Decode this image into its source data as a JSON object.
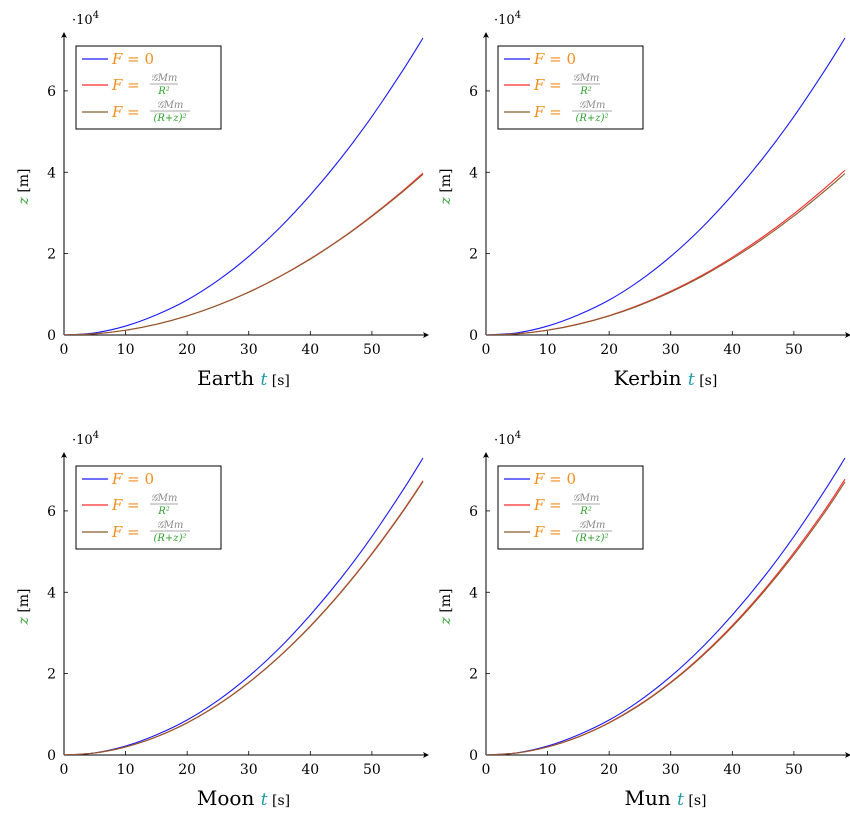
{
  "colors": {
    "orange": "#f28e1c",
    "green": "#2ca02c",
    "teal": "#1f9aa8",
    "gray": "#8a8a8a",
    "blue": "#1a1aff",
    "red": "#ff2a2a",
    "brown": "#8b5a2b",
    "axis": "#000000"
  },
  "shared": {
    "multiplier_base": "·10",
    "multiplier_exp": "4",
    "ylabel_var": "z",
    "ylabel_unit": "[m]",
    "xlabel_var": "t",
    "xlabel_unit": "[s]",
    "legend": [
      {
        "lhs": "F = ",
        "rhs": "0",
        "kind": "plain"
      },
      {
        "lhs": "F = ",
        "num": "𝒢Mm",
        "den": "R²",
        "kind": "frac"
      },
      {
        "lhs": "F = ",
        "num": "𝒢Mm",
        "den": "(R+z)²",
        "kind": "frac"
      }
    ]
  },
  "chart_data": [
    {
      "type": "line",
      "xlabel_prefix": "Earth",
      "xlim": [
        0,
        58.3
      ],
      "ylim": [
        0,
        73000
      ],
      "xticks": [
        0,
        10,
        20,
        30,
        40,
        50
      ],
      "yticks": [
        0,
        20000,
        40000,
        60000
      ],
      "ytick_labels": [
        "0",
        "2",
        "4",
        "6"
      ],
      "series": [
        {
          "name": "F = 0",
          "color": "blue",
          "x": [
            0,
            5,
            10,
            15,
            20,
            25,
            30,
            35,
            40,
            45,
            50,
            55,
            58.3
          ],
          "y": [
            0,
            525,
            2200,
            4950,
            8600,
            13400,
            19300,
            26300,
            34400,
            43500,
            53700,
            65000,
            73000
          ]
        },
        {
          "name": "F = 𝒢Mm/R²",
          "color": "red",
          "x": [
            0,
            5,
            10,
            15,
            20,
            25,
            30,
            35,
            40,
            45,
            50,
            55,
            58.3
          ],
          "y": [
            0,
            290,
            1170,
            2640,
            4700,
            7350,
            10550,
            14350,
            18750,
            23700,
            29300,
            35400,
            39800
          ]
        },
        {
          "name": "F = 𝒢Mm/(R+z)²",
          "color": "brown",
          "x": [
            0,
            5,
            10,
            15,
            20,
            25,
            30,
            35,
            40,
            45,
            50,
            55,
            58.3
          ],
          "y": [
            0,
            290,
            1165,
            2630,
            4680,
            7310,
            10500,
            14300,
            18650,
            23600,
            29150,
            35200,
            39500
          ]
        }
      ]
    },
    {
      "type": "line",
      "xlabel_prefix": "Kerbin",
      "xlim": [
        0,
        58.3
      ],
      "ylim": [
        0,
        73000
      ],
      "xticks": [
        0,
        10,
        20,
        30,
        40,
        50
      ],
      "yticks": [
        0,
        20000,
        40000,
        60000
      ],
      "ytick_labels": [
        "0",
        "2",
        "4",
        "6"
      ],
      "series": [
        {
          "name": "F = 0",
          "color": "blue",
          "x": [
            0,
            5,
            10,
            15,
            20,
            25,
            30,
            35,
            40,
            45,
            50,
            55,
            58.3
          ],
          "y": [
            0,
            525,
            2200,
            4950,
            8600,
            13400,
            19300,
            26300,
            34400,
            43500,
            53700,
            65000,
            73000
          ]
        },
        {
          "name": "F = 𝒢Mm/R²",
          "color": "red",
          "x": [
            0,
            5,
            10,
            15,
            20,
            25,
            30,
            35,
            40,
            45,
            50,
            55,
            58.3
          ],
          "y": [
            0,
            295,
            1190,
            2680,
            4770,
            7460,
            10750,
            14600,
            19100,
            24150,
            29800,
            36050,
            40500
          ]
        },
        {
          "name": "F = 𝒢Mm/(R+z)²",
          "color": "brown",
          "x": [
            0,
            5,
            10,
            15,
            20,
            25,
            30,
            35,
            40,
            45,
            50,
            55,
            58.3
          ],
          "y": [
            0,
            290,
            1165,
            2630,
            4680,
            7320,
            10550,
            14350,
            18750,
            23700,
            29250,
            35400,
            39700
          ]
        }
      ]
    },
    {
      "type": "line",
      "xlabel_prefix": "Moon",
      "xlim": [
        0,
        58.3
      ],
      "ylim": [
        0,
        73000
      ],
      "xticks": [
        0,
        10,
        20,
        30,
        40,
        50
      ],
      "yticks": [
        0,
        20000,
        40000,
        60000
      ],
      "ytick_labels": [
        "0",
        "2",
        "4",
        "6"
      ],
      "series": [
        {
          "name": "F = 0",
          "color": "blue",
          "x": [
            0,
            5,
            10,
            15,
            20,
            25,
            30,
            35,
            40,
            45,
            50,
            55,
            58.3
          ],
          "y": [
            0,
            525,
            2200,
            4950,
            8600,
            13400,
            19300,
            26300,
            34400,
            43500,
            53700,
            65000,
            73000
          ]
        },
        {
          "name": "F = 𝒢Mm/R²",
          "color": "red",
          "x": [
            0,
            5,
            10,
            15,
            20,
            25,
            30,
            35,
            40,
            45,
            50,
            55,
            58.3
          ],
          "y": [
            0,
            490,
            1980,
            4460,
            7920,
            12380,
            17830,
            24270,
            31700,
            40120,
            49530,
            59930,
            67400
          ]
        },
        {
          "name": "F = 𝒢Mm/(R+z)²",
          "color": "brown",
          "x": [
            0,
            5,
            10,
            15,
            20,
            25,
            30,
            35,
            40,
            45,
            50,
            55,
            58.3
          ],
          "y": [
            0,
            490,
            1975,
            4450,
            7900,
            12340,
            17770,
            24190,
            31600,
            40000,
            49380,
            59750,
            67200
          ]
        }
      ]
    },
    {
      "type": "line",
      "xlabel_prefix": "Mun",
      "xlim": [
        0,
        58.3
      ],
      "ylim": [
        0,
        73000
      ],
      "xticks": [
        0,
        10,
        20,
        30,
        40,
        50
      ],
      "yticks": [
        0,
        20000,
        40000,
        60000
      ],
      "ytick_labels": [
        "0",
        "2",
        "4",
        "6"
      ],
      "series": [
        {
          "name": "F = 0",
          "color": "blue",
          "x": [
            0,
            5,
            10,
            15,
            20,
            25,
            30,
            35,
            40,
            45,
            50,
            55,
            58.3
          ],
          "y": [
            0,
            525,
            2200,
            4950,
            8600,
            13400,
            19300,
            26300,
            34400,
            43500,
            53700,
            65000,
            73000
          ]
        },
        {
          "name": "F = 𝒢Mm/R²",
          "color": "red",
          "x": [
            0,
            5,
            10,
            15,
            20,
            25,
            30,
            35,
            40,
            45,
            50,
            55,
            58.3
          ],
          "y": [
            0,
            490,
            1990,
            4480,
            7960,
            12440,
            17900,
            24370,
            31830,
            40280,
            49730,
            60160,
            67800
          ]
        },
        {
          "name": "F = 𝒢Mm/(R+z)²",
          "color": "brown",
          "x": [
            0,
            5,
            10,
            15,
            20,
            25,
            30,
            35,
            40,
            45,
            50,
            55,
            58.3
          ],
          "y": [
            0,
            488,
            1970,
            4430,
            7880,
            12310,
            17730,
            24130,
            31520,
            39900,
            49250,
            59600,
            67150
          ]
        }
      ]
    }
  ]
}
